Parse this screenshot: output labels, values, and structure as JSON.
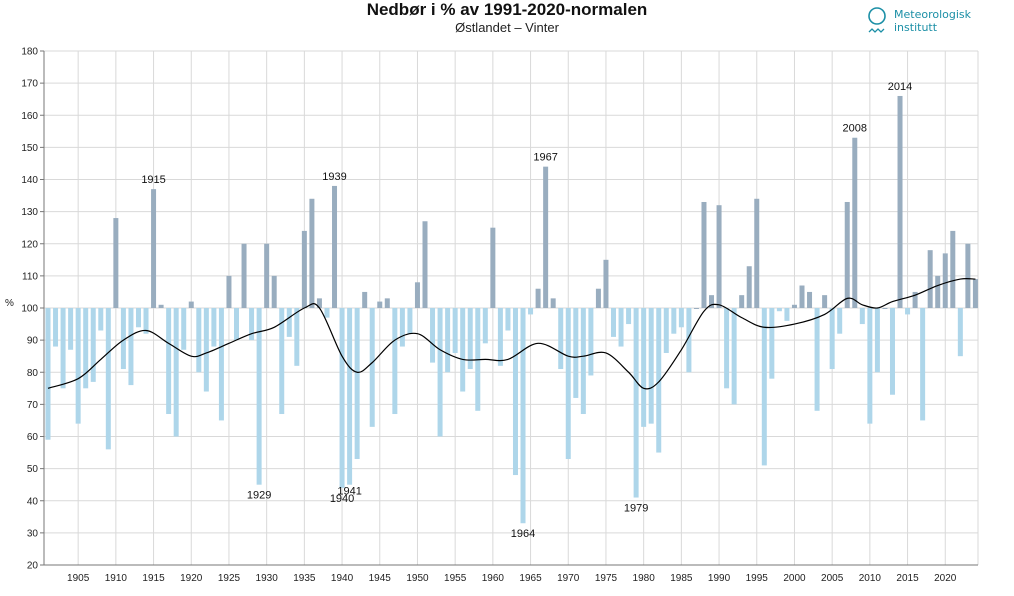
{
  "header": {
    "title": "Nedbør i % av 1991-2020-normalen",
    "subtitle": "Østlandet – Vinter"
  },
  "logo": {
    "line1": "Meteorologisk",
    "line2": "institutt",
    "color": "#1b8fa6"
  },
  "colors": {
    "above": "#99adbf",
    "below": "#aed6ea",
    "curve": "#000000",
    "grid": "#d9d9d9"
  },
  "chart_data": {
    "type": "bar",
    "title": "Nedbør i % av 1991-2020-normalen",
    "subtitle": "Østlandet – Vinter",
    "xlabel": "",
    "ylabel": "%",
    "baseline": 100,
    "ylim": [
      20,
      180
    ],
    "yticks": [
      20,
      30,
      40,
      50,
      60,
      70,
      80,
      90,
      100,
      110,
      120,
      130,
      140,
      150,
      160,
      170,
      180
    ],
    "xlim": [
      1900,
      2025
    ],
    "xticks": [
      1905,
      1910,
      1915,
      1920,
      1925,
      1930,
      1935,
      1940,
      1945,
      1950,
      1955,
      1960,
      1965,
      1970,
      1975,
      1980,
      1985,
      1990,
      1995,
      2000,
      2005,
      2010,
      2015,
      2020
    ],
    "grid": true,
    "years": [
      1901,
      1902,
      1903,
      1904,
      1905,
      1906,
      1907,
      1908,
      1909,
      1910,
      1911,
      1912,
      1913,
      1914,
      1915,
      1916,
      1917,
      1918,
      1919,
      1920,
      1921,
      1922,
      1923,
      1924,
      1925,
      1926,
      1927,
      1928,
      1929,
      1930,
      1931,
      1932,
      1933,
      1934,
      1935,
      1936,
      1937,
      1938,
      1939,
      1940,
      1941,
      1942,
      1943,
      1944,
      1945,
      1946,
      1947,
      1948,
      1949,
      1950,
      1951,
      1952,
      1953,
      1954,
      1955,
      1956,
      1957,
      1958,
      1959,
      1960,
      1961,
      1962,
      1963,
      1964,
      1965,
      1966,
      1967,
      1968,
      1969,
      1970,
      1971,
      1972,
      1973,
      1974,
      1975,
      1976,
      1977,
      1978,
      1979,
      1980,
      1981,
      1982,
      1983,
      1984,
      1985,
      1986,
      1987,
      1988,
      1989,
      1990,
      1991,
      1992,
      1993,
      1994,
      1995,
      1996,
      1997,
      1998,
      1999,
      2000,
      2001,
      2002,
      2003,
      2004,
      2005,
      2006,
      2007,
      2008,
      2009,
      2010,
      2011,
      2012,
      2013,
      2014,
      2015,
      2016,
      2017,
      2018,
      2019,
      2020,
      2021,
      2022,
      2023,
      2024
    ],
    "values": [
      59,
      88,
      75,
      87,
      64,
      75,
      77,
      93,
      56,
      128,
      81,
      76,
      94,
      92,
      137,
      101,
      67,
      60,
      87,
      102,
      80,
      74,
      88,
      65,
      110,
      90,
      120,
      90,
      45,
      120,
      110,
      67,
      91,
      82,
      124,
      134,
      103,
      97,
      138,
      44,
      45,
      53,
      105,
      63,
      102,
      103,
      67,
      88,
      92,
      108,
      127,
      83,
      60,
      80,
      86,
      74,
      81,
      68,
      89,
      125,
      82,
      93,
      48,
      33,
      98,
      106,
      144,
      103,
      81,
      53,
      72,
      67,
      79,
      106,
      115,
      91,
      88,
      95,
      41,
      63,
      64,
      55,
      86,
      92,
      94,
      80,
      100,
      133,
      104,
      132,
      75,
      70,
      104,
      113,
      134,
      51,
      78,
      99,
      96,
      101,
      107,
      105,
      68,
      104,
      81,
      92,
      133,
      153,
      95,
      64,
      80,
      100,
      73,
      166,
      98,
      105,
      65,
      118,
      110,
      117,
      124,
      85,
      120,
      109
    ],
    "smoothed": {
      "years": [
        1901,
        1905,
        1908,
        1911,
        1914,
        1917,
        1920,
        1922,
        1925,
        1928,
        1931,
        1935,
        1937,
        1940,
        1942,
        1944,
        1947,
        1950,
        1953,
        1956,
        1959,
        1962,
        1966,
        1970,
        1972,
        1975,
        1978,
        1980,
        1982,
        1985,
        1988,
        1990,
        1993,
        1996,
        2000,
        2004,
        2007,
        2009,
        2011,
        2013,
        2016,
        2019,
        2022,
        2024
      ],
      "values": [
        75,
        78,
        84,
        90,
        93,
        89,
        85,
        86,
        89,
        92,
        94,
        100,
        100,
        85,
        80,
        83,
        90,
        92,
        87,
        84,
        84,
        84,
        89,
        85,
        85,
        86,
        80,
        75,
        77,
        87,
        99,
        101,
        97,
        94,
        95,
        98,
        103,
        101,
        100,
        102,
        104,
        107,
        109,
        109
      ]
    },
    "annotations": [
      {
        "year": 1915,
        "label": "1915",
        "position": "above"
      },
      {
        "year": 1929,
        "label": "1929",
        "position": "below"
      },
      {
        "year": 1939,
        "label": "1939",
        "position": "above"
      },
      {
        "year": 1940,
        "label": "1940",
        "position": "below"
      },
      {
        "year": 1941,
        "label": "1941",
        "position": "below"
      },
      {
        "year": 1964,
        "label": "1964",
        "position": "below"
      },
      {
        "year": 1967,
        "label": "1967",
        "position": "above"
      },
      {
        "year": 1979,
        "label": "1979",
        "position": "below"
      },
      {
        "year": 2008,
        "label": "2008",
        "position": "above"
      },
      {
        "year": 2014,
        "label": "2014",
        "position": "above"
      }
    ]
  }
}
